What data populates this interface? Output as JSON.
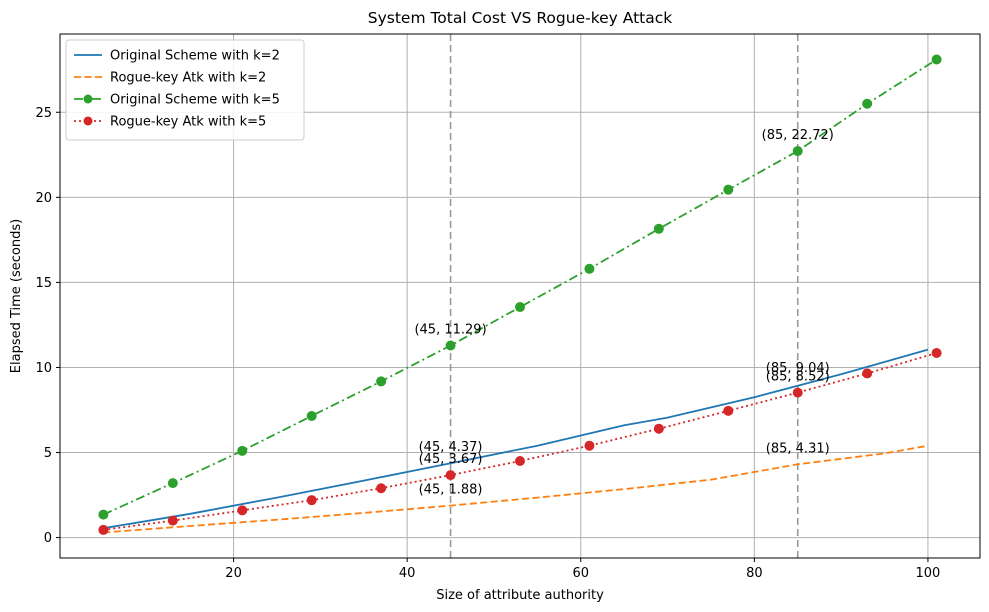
{
  "chart_data": {
    "type": "line",
    "title": "System Total Cost VS Rogue-key Attack",
    "xlabel": "Size of attribute authority",
    "ylabel": "Elapsed Time (seconds)",
    "xlim": [
      0,
      106
    ],
    "ylim": [
      -1.2,
      29.6
    ],
    "xticks": [
      20,
      40,
      60,
      80,
      100
    ],
    "yticks": [
      0,
      5,
      10,
      15,
      20,
      25
    ],
    "grid": true,
    "legend_position": "upper-left",
    "vertical_reference_lines": [
      45,
      85
    ],
    "series": [
      {
        "name": "Original Scheme with k=2",
        "color": "#1f77b4",
        "line_style": "solid",
        "marker": "none",
        "x": [
          5,
          15,
          25,
          35,
          45,
          55,
          65,
          70,
          80,
          90,
          100
        ],
        "y": [
          0.55,
          1.4,
          2.35,
          3.35,
          4.37,
          5.4,
          6.6,
          7.05,
          8.25,
          9.6,
          11.05
        ]
      },
      {
        "name": "Rogue-key Atk with k=2",
        "color": "#ff7f0e",
        "line_style": "dashed",
        "marker": "none",
        "x": [
          5,
          15,
          25,
          35,
          45,
          55,
          65,
          75,
          85,
          95,
          100
        ],
        "y": [
          0.3,
          0.68,
          1.05,
          1.45,
          1.88,
          2.35,
          2.85,
          3.4,
          4.31,
          4.95,
          5.4
        ]
      },
      {
        "name": "Original Scheme with k=5",
        "color": "#2ca02c",
        "line_style": "dashdot",
        "marker": "circle",
        "x": [
          5,
          13,
          21,
          29,
          37,
          45,
          53,
          61,
          69,
          77,
          85,
          93,
          101
        ],
        "y": [
          1.35,
          3.2,
          5.1,
          7.15,
          9.18,
          11.29,
          13.55,
          15.8,
          18.15,
          20.45,
          22.72,
          25.5,
          28.1
        ]
      },
      {
        "name": "Rogue-key Atk with k=5",
        "color": "#d62728",
        "line_style": "dotted",
        "marker": "circle",
        "x": [
          5,
          13,
          21,
          29,
          37,
          45,
          53,
          61,
          69,
          77,
          85,
          93,
          101
        ],
        "y": [
          0.45,
          1.0,
          1.6,
          2.2,
          2.9,
          3.67,
          4.5,
          5.4,
          6.4,
          7.45,
          8.52,
          9.65,
          10.85
        ]
      }
    ],
    "annotations": [
      {
        "text": "(45, 11.29)",
        "x": 45,
        "y": 11.29
      },
      {
        "text": "(85, 22.72)",
        "x": 85,
        "y": 22.72
      },
      {
        "text": "(45, 4.37)",
        "x": 45,
        "y": 4.37
      },
      {
        "text": "(45, 3.67)",
        "x": 45,
        "y": 3.67
      },
      {
        "text": "(45, 1.88)",
        "x": 45,
        "y": 1.88
      },
      {
        "text": "(85, 9.04)",
        "x": 85,
        "y": 9.04
      },
      {
        "text": "(85, 8.52)",
        "x": 85,
        "y": 8.52
      },
      {
        "text": "(85, 4.31)",
        "x": 85,
        "y": 4.31
      }
    ]
  }
}
